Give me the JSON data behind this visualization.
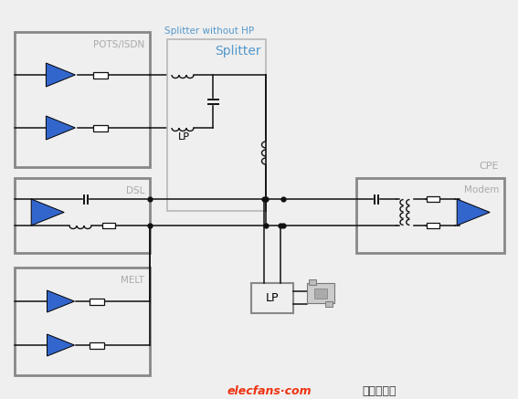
{
  "bg_color": "#efefef",
  "splitter_title": "Splitter without HP",
  "splitter_label": "Splitter",
  "lp_label": "LP",
  "cpe_label": "CPE",
  "modem_label": "Modem",
  "dsl_label": "DSL",
  "pots_label": "POTS/ISDN",
  "melt_label": "MELT",
  "box_ec": "#888888",
  "splitter_ec": "#bbbbbb",
  "blue": "#3366cc",
  "text_gray": "#aaaaaa",
  "text_blue": "#5599cc",
  "elecfans_red": "#ee3311",
  "elecfans_text": "elecfans·com",
  "chinese_text": "电子发烧友",
  "black": "#111111"
}
